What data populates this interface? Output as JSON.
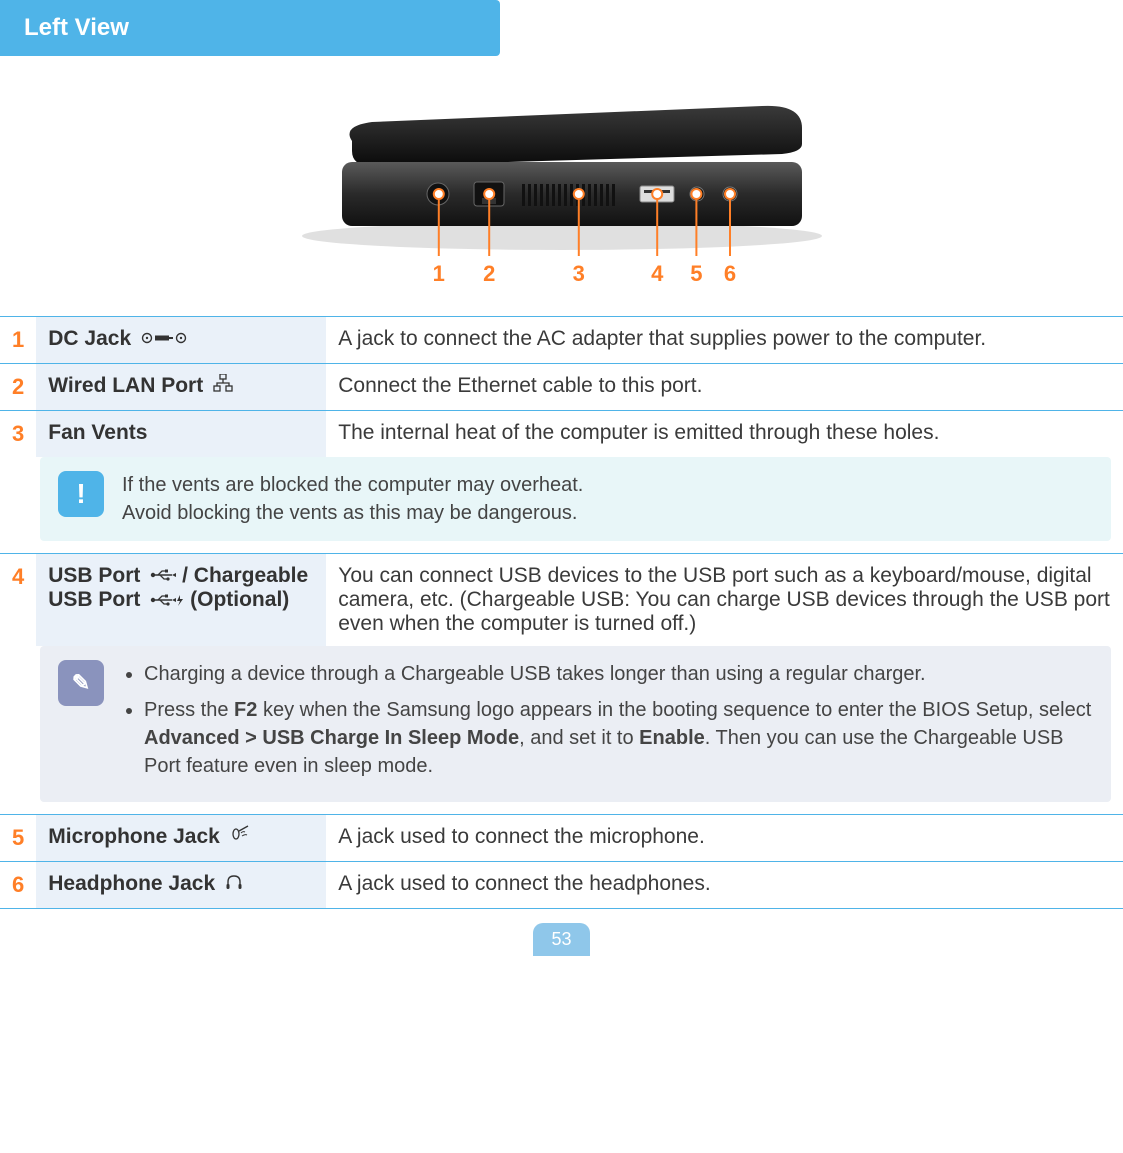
{
  "section_title": "Left View",
  "page_number": "53",
  "colors": {
    "accent": "#4fb4e8",
    "orange": "#ff7f27",
    "label_bg": "#eaf1f9",
    "info_bg": "#e8f6f8",
    "note_bg": "#ebeef4",
    "note_icon_bg": "#8a93bd"
  },
  "diagram": {
    "labels": [
      "1",
      "2",
      "3",
      "4",
      "5",
      "6"
    ],
    "label_color": "#ff7f27",
    "marker_color": "#ff7f27",
    "label_fontsize": 22,
    "positions_x": [
      0.28,
      0.37,
      0.53,
      0.67,
      0.74,
      0.8
    ]
  },
  "rows": [
    {
      "num": "1",
      "label": "DC Jack",
      "icon": "dc",
      "desc": "A jack to connect the AC adapter that supplies power to the computer."
    },
    {
      "num": "2",
      "label": "Wired LAN Port",
      "icon": "lan",
      "desc": "Connect the Ethernet cable to this port."
    },
    {
      "num": "3",
      "label": "Fan Vents",
      "icon": null,
      "desc": "The internal heat of the computer is emitted through these holes."
    },
    {
      "num": "4",
      "label_parts": {
        "a": "USB Port",
        "b": " / Chargeable USB Port",
        "c": " (Optional)"
      },
      "icons": [
        "usb",
        "usbcharge"
      ],
      "desc": "You can connect USB devices to the USB port such as a keyboard/mouse, digital camera, etc. (Chargeable USB: You can charge USB devices through the USB port even when the computer is turned off.)"
    },
    {
      "num": "5",
      "label": "Microphone Jack",
      "icon": "mic",
      "desc": "A jack used to connect the microphone."
    },
    {
      "num": "6",
      "label": "Headphone Jack",
      "icon": "hp",
      "desc": "A jack used to connect the headphones."
    }
  ],
  "info_callout": {
    "line1": "If the vents are blocked the computer may overheat.",
    "line2": "Avoid blocking the vents as this may be dangerous."
  },
  "note_callout": {
    "bullet1": "Charging a device through a Chargeable USB takes longer than using a regular charger.",
    "bullet2_pre": "Press the ",
    "bullet2_b1": "F2",
    "bullet2_mid1": " key when the Samsung logo appears in the booting sequence to enter the BIOS Setup, select ",
    "bullet2_b2": "Advanced > USB Charge In Sleep Mode",
    "bullet2_mid2": ", and set it to ",
    "bullet2_b3": "Enable",
    "bullet2_post": ". Then you can use the Chargeable USB Port feature even in sleep mode."
  }
}
